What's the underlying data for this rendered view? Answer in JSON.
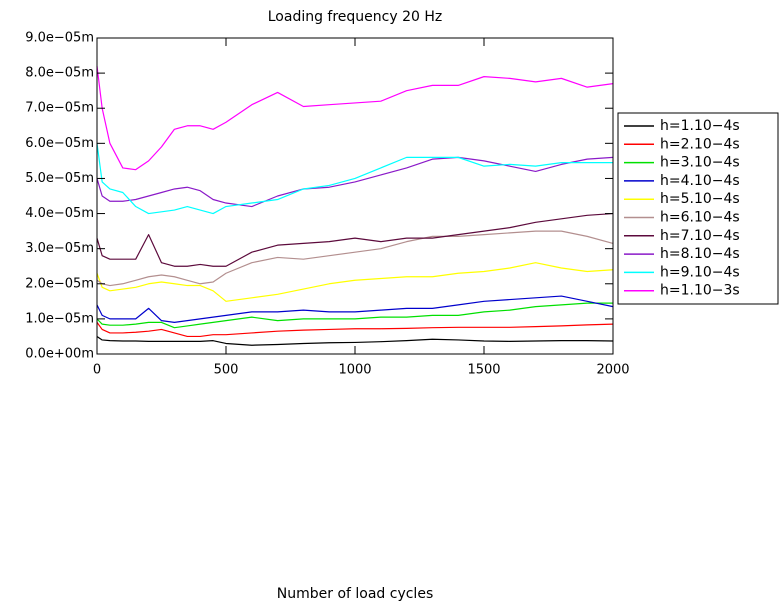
{
  "chart_data": {
    "type": "line",
    "title": "Loading frequency 20 Hz",
    "xlabel": "Number of load cycles",
    "x": [
      0,
      20,
      50,
      100,
      150,
      200,
      250,
      300,
      350,
      400,
      450,
      500,
      600,
      700,
      800,
      900,
      1000,
      1100,
      1200,
      1300,
      1400,
      1500,
      1600,
      1700,
      1800,
      1900,
      2000
    ],
    "xlim": [
      0,
      2000
    ],
    "xticks": [
      0,
      500,
      1000,
      1500,
      2000
    ],
    "ylim": [
      0,
      9e-05
    ],
    "yticks": [
      {
        "value": 0,
        "label": "0.0e+00m"
      },
      {
        "value": 1e-05,
        "label": "1.0e−05m"
      },
      {
        "value": 2e-05,
        "label": "2.0e−05m"
      },
      {
        "value": 3e-05,
        "label": "3.0e−05m"
      },
      {
        "value": 4e-05,
        "label": "4.0e−05m"
      },
      {
        "value": 5e-05,
        "label": "5.0e−05m"
      },
      {
        "value": 6e-05,
        "label": "6.0e−05m"
      },
      {
        "value": 7e-05,
        "label": "7.0e−05m"
      },
      {
        "value": 8e-05,
        "label": "8.0e−05m"
      },
      {
        "value": 9e-05,
        "label": "9.0e−05m"
      }
    ],
    "legend": "right",
    "series": [
      {
        "name": "h=1.10−4s",
        "color": "#000000",
        "values": [
          5e-06,
          4e-06,
          3.8e-06,
          3.7e-06,
          3.7e-06,
          3.6e-06,
          3.6e-06,
          3.6e-06,
          3.6e-06,
          3.6e-06,
          3.8e-06,
          3e-06,
          2.5e-06,
          2.7e-06,
          3e-06,
          3.2e-06,
          3.3e-06,
          3.5e-06,
          3.8e-06,
          4.2e-06,
          4e-06,
          3.7e-06,
          3.6e-06,
          3.7e-06,
          3.8e-06,
          3.8e-06,
          3.7e-06
        ]
      },
      {
        "name": "h=2.10−4s",
        "color": "#ff0000",
        "values": [
          9e-06,
          7e-06,
          6e-06,
          6e-06,
          6.2e-06,
          6.5e-06,
          7e-06,
          6e-06,
          5e-06,
          5e-06,
          5.5e-06,
          5.5e-06,
          6e-06,
          6.5e-06,
          6.8e-06,
          7e-06,
          7.2e-06,
          7.2e-06,
          7.3e-06,
          7.5e-06,
          7.6e-06,
          7.6e-06,
          7.6e-06,
          7.8e-06,
          8e-06,
          8.3e-06,
          8.5e-06
        ]
      },
      {
        "name": "h=3.10−4s",
        "color": "#00e000",
        "values": [
          1e-05,
          8.5e-06,
          8.2e-06,
          8.2e-06,
          8.5e-06,
          9e-06,
          9e-06,
          7.5e-06,
          8e-06,
          8.5e-06,
          9e-06,
          9.5e-06,
          1.05e-05,
          9.5e-06,
          1e-05,
          1e-05,
          1e-05,
          1.05e-05,
          1.05e-05,
          1.1e-05,
          1.1e-05,
          1.2e-05,
          1.25e-05,
          1.35e-05,
          1.4e-05,
          1.45e-05,
          1.45e-05
        ]
      },
      {
        "name": "h=4.10−4s",
        "color": "#0000cc",
        "values": [
          1.4e-05,
          1.1e-05,
          1e-05,
          1e-05,
          1e-05,
          1.3e-05,
          9.5e-06,
          9e-06,
          9.5e-06,
          1e-05,
          1.05e-05,
          1.1e-05,
          1.2e-05,
          1.2e-05,
          1.25e-05,
          1.2e-05,
          1.2e-05,
          1.25e-05,
          1.3e-05,
          1.3e-05,
          1.4e-05,
          1.5e-05,
          1.55e-05,
          1.6e-05,
          1.65e-05,
          1.5e-05,
          1.35e-05
        ]
      },
      {
        "name": "h=5.10−4s",
        "color": "#ffff00",
        "values": [
          2.3e-05,
          1.9e-05,
          1.8e-05,
          1.85e-05,
          1.9e-05,
          2e-05,
          2.05e-05,
          2e-05,
          1.95e-05,
          1.95e-05,
          1.8e-05,
          1.5e-05,
          1.6e-05,
          1.7e-05,
          1.85e-05,
          2e-05,
          2.1e-05,
          2.15e-05,
          2.2e-05,
          2.2e-05,
          2.3e-05,
          2.35e-05,
          2.45e-05,
          2.6e-05,
          2.45e-05,
          2.35e-05,
          2.4e-05
        ]
      },
      {
        "name": "h=6.10−4s",
        "color": "#b38f8f",
        "values": [
          2.1e-05,
          2e-05,
          1.95e-05,
          2e-05,
          2.1e-05,
          2.2e-05,
          2.25e-05,
          2.2e-05,
          2.1e-05,
          2e-05,
          2.05e-05,
          2.3e-05,
          2.6e-05,
          2.75e-05,
          2.7e-05,
          2.8e-05,
          2.9e-05,
          3e-05,
          3.2e-05,
          3.35e-05,
          3.35e-05,
          3.4e-05,
          3.45e-05,
          3.5e-05,
          3.5e-05,
          3.35e-05,
          3.15e-05
        ]
      },
      {
        "name": "h=7.10−4s",
        "color": "#5c0a3c",
        "values": [
          3.3e-05,
          2.8e-05,
          2.7e-05,
          2.7e-05,
          2.7e-05,
          3.4e-05,
          2.6e-05,
          2.5e-05,
          2.5e-05,
          2.55e-05,
          2.5e-05,
          2.5e-05,
          2.9e-05,
          3.1e-05,
          3.15e-05,
          3.2e-05,
          3.3e-05,
          3.2e-05,
          3.3e-05,
          3.3e-05,
          3.4e-05,
          3.5e-05,
          3.6e-05,
          3.75e-05,
          3.85e-05,
          3.95e-05,
          4e-05
        ]
      },
      {
        "name": "h=8.10−4s",
        "color": "#8a1ac8",
        "values": [
          5e-05,
          4.5e-05,
          4.35e-05,
          4.35e-05,
          4.4e-05,
          4.5e-05,
          4.6e-05,
          4.7e-05,
          4.75e-05,
          4.65e-05,
          4.4e-05,
          4.3e-05,
          4.2e-05,
          4.5e-05,
          4.7e-05,
          4.75e-05,
          4.9e-05,
          5.1e-05,
          5.3e-05,
          5.55e-05,
          5.6e-05,
          5.5e-05,
          5.35e-05,
          5.2e-05,
          5.4e-05,
          5.55e-05,
          5.6e-05
        ]
      },
      {
        "name": "h=9.10−4s",
        "color": "#00ffff",
        "values": [
          6e-05,
          4.9e-05,
          4.7e-05,
          4.6e-05,
          4.2e-05,
          4e-05,
          4.05e-05,
          4.1e-05,
          4.2e-05,
          4.1e-05,
          4e-05,
          4.2e-05,
          4.3e-05,
          4.4e-05,
          4.7e-05,
          4.8e-05,
          5e-05,
          5.3e-05,
          5.6e-05,
          5.6e-05,
          5.6e-05,
          5.35e-05,
          5.4e-05,
          5.35e-05,
          5.45e-05,
          5.45e-05,
          5.45e-05
        ]
      },
      {
        "name": "h=1.10−3s",
        "color": "#ff00ff",
        "values": [
          8.2e-05,
          7e-05,
          6e-05,
          5.3e-05,
          5.25e-05,
          5.5e-05,
          5.9e-05,
          6.4e-05,
          6.5e-05,
          6.5e-05,
          6.4e-05,
          6.6e-05,
          7.1e-05,
          7.45e-05,
          7.05e-05,
          7.1e-05,
          7.15e-05,
          7.2e-05,
          7.5e-05,
          7.65e-05,
          7.65e-05,
          7.9e-05,
          7.85e-05,
          7.75e-05,
          7.85e-05,
          7.6e-05,
          7.7e-05
        ]
      }
    ]
  }
}
